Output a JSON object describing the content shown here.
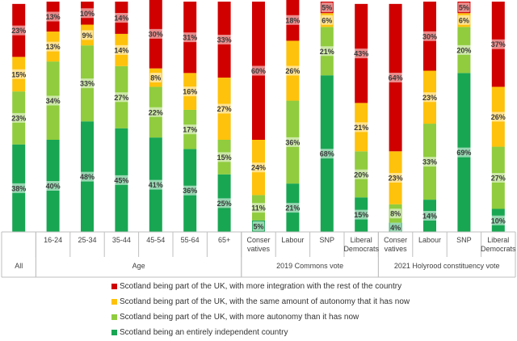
{
  "chart_data": {
    "type": "bar",
    "stacked": true,
    "percent": true,
    "ylim": [
      0,
      100
    ],
    "grid": false,
    "legend_position": "bottom",
    "categories": [
      {
        "label": "All",
        "group": ""
      },
      {
        "label": "16-24",
        "group": "Age"
      },
      {
        "label": "25-34",
        "group": "Age"
      },
      {
        "label": "35-44",
        "group": "Age"
      },
      {
        "label": "45-54",
        "group": "Age"
      },
      {
        "label": "55-64",
        "group": "Age"
      },
      {
        "label": "65+",
        "group": "Age"
      },
      {
        "label": "Conser vatives",
        "group": "2019 Commons vote"
      },
      {
        "label": "Labour",
        "group": "2019 Commons vote"
      },
      {
        "label": "SNP",
        "group": "2019 Commons vote"
      },
      {
        "label": "Liberal Democrats",
        "group": "2019 Commons vote"
      },
      {
        "label": "Conser vatives",
        "group": "2021 Holyrood constituency vote"
      },
      {
        "label": "Labour",
        "group": "2021 Holyrood constituency vote"
      },
      {
        "label": "SNP",
        "group": "2021 Holyrood constituency vote"
      },
      {
        "label": "Liberal Democrats",
        "group": "2021 Holyrood constituency vote"
      }
    ],
    "groups": [
      {
        "label": "All",
        "start": 0,
        "end": 0
      },
      {
        "label": "Age",
        "start": 1,
        "end": 6
      },
      {
        "label": "2019 Commons vote",
        "start": 7,
        "end": 10
      },
      {
        "label": "2021 Holyrood constituency vote",
        "start": 11,
        "end": 14
      }
    ],
    "series": [
      {
        "name": "Scotland being an entirely independent country",
        "color": "#18a653",
        "values": [
          38,
          40,
          48,
          45,
          41,
          36,
          25,
          5,
          21,
          68,
          15,
          4,
          14,
          69,
          10
        ]
      },
      {
        "name": "Scotland being part of the UK, with more autonomy than it has now",
        "color": "#90cc3e",
        "values": [
          23,
          34,
          33,
          27,
          22,
          17,
          15,
          11,
          36,
          21,
          20,
          8,
          33,
          20,
          27
        ]
      },
      {
        "name": "Scotland being part of the UK, with the same amount of autonomy that it has now",
        "color": "#fec20c",
        "values": [
          15,
          13,
          9,
          14,
          8,
          16,
          27,
          24,
          26,
          6,
          21,
          23,
          23,
          6,
          26
        ]
      },
      {
        "name": "Scotland being part of the UK, with more integration with the rest of the country",
        "color": "#d00000",
        "values": [
          23,
          13,
          10,
          14,
          30,
          31,
          33,
          60,
          18,
          5,
          43,
          64,
          30,
          5,
          37
        ]
      }
    ]
  },
  "legend_order": [
    3,
    2,
    1,
    0
  ]
}
